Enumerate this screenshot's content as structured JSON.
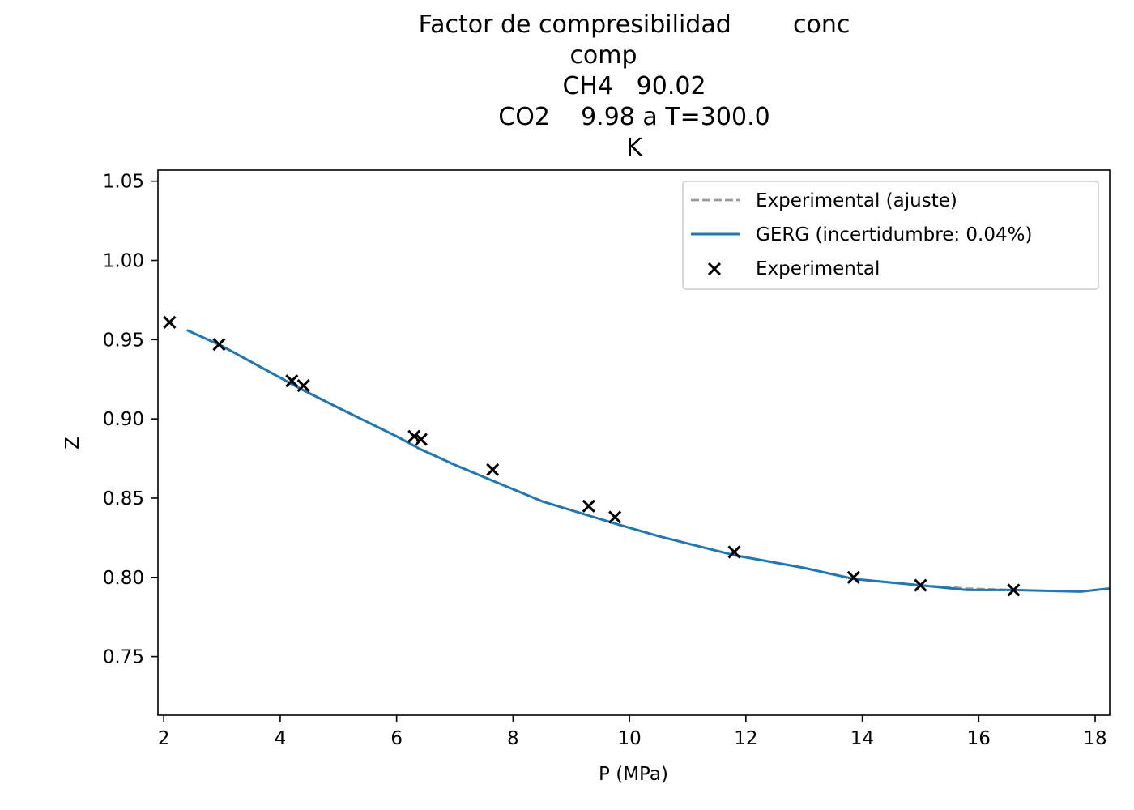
{
  "chart_data": {
    "type": "line",
    "title_lines": [
      "Factor de compresibilidad        conc",
      "comp",
      "CH4   90.02",
      "CO2    9.98 a T=300.0",
      "K"
    ],
    "xlabel": "P (MPa)",
    "ylabel": "Z",
    "xlim": [
      1.9,
      18.25
    ],
    "ylim": [
      0.713,
      1.057
    ],
    "xticks": [
      2,
      4,
      6,
      8,
      10,
      12,
      14,
      16,
      18
    ],
    "xtick_labels": [
      "2",
      "4",
      "6",
      "8",
      "10",
      "12",
      "14",
      "16",
      "18"
    ],
    "yticks": [
      0.75,
      0.8,
      0.85,
      0.9,
      0.95,
      1.0,
      1.05
    ],
    "ytick_labels": [
      "0.75",
      "0.80",
      "0.85",
      "0.90",
      "0.95",
      "1.00",
      "1.05"
    ],
    "grid": false,
    "legend_position": "top-right",
    "series": [
      {
        "name": "Experimental (ajuste)",
        "kind": "line",
        "style": "dashed",
        "color": "#999999",
        "x": [
          2.4,
          3.0,
          4.0,
          4.35,
          5.0,
          6.0,
          6.4,
          7.0,
          7.65,
          8.5,
          9.3,
          9.75,
          10.5,
          11.8,
          13.0,
          13.85,
          15.0,
          15.8,
          16.6
        ],
        "y": [
          0.956,
          0.946,
          0.926,
          0.919,
          0.907,
          0.889,
          0.881,
          0.871,
          0.861,
          0.848,
          0.839,
          0.834,
          0.826,
          0.814,
          0.806,
          0.799,
          0.795,
          0.793,
          0.792
        ]
      },
      {
        "name": "GERG (incertidumbre: 0.04%)",
        "kind": "line",
        "style": "solid",
        "color": "#1f77b4",
        "x": [
          2.4,
          3.0,
          4.0,
          4.35,
          5.0,
          6.0,
          6.4,
          7.0,
          7.65,
          8.5,
          9.3,
          9.75,
          10.5,
          11.8,
          13.0,
          13.85,
          15.0,
          15.8,
          16.6,
          17.75,
          18.25
        ],
        "y": [
          0.956,
          0.946,
          0.926,
          0.919,
          0.907,
          0.889,
          0.881,
          0.871,
          0.861,
          0.848,
          0.839,
          0.834,
          0.826,
          0.814,
          0.806,
          0.799,
          0.795,
          0.792,
          0.792,
          0.791,
          0.793
        ]
      },
      {
        "name": "Experimental",
        "kind": "scatter",
        "marker": "x",
        "color": "#000000",
        "x": [
          2.1,
          2.95,
          4.2,
          4.4,
          6.3,
          6.42,
          7.65,
          9.3,
          9.75,
          11.8,
          13.85,
          15.0,
          16.6
        ],
        "y": [
          0.961,
          0.947,
          0.924,
          0.921,
          0.889,
          0.887,
          0.868,
          0.845,
          0.838,
          0.816,
          0.8,
          0.795,
          0.792
        ]
      }
    ]
  }
}
